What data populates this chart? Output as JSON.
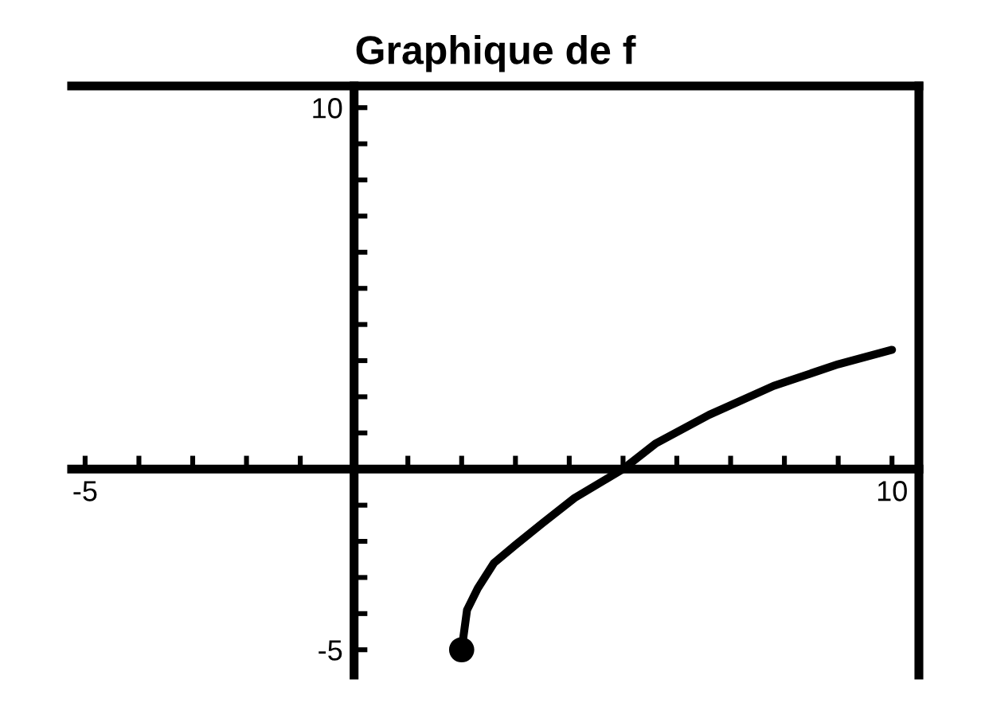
{
  "chart_data": {
    "type": "line",
    "title": "Graphique de f",
    "series": [
      {
        "color": "#000000",
        "x": [
          2,
          2.1,
          2.3,
          2.6,
          3,
          3.5,
          4.1,
          5,
          5.6,
          6.6,
          7.8,
          9,
          10
        ],
        "values": [
          -5,
          -3.9,
          -3.3,
          -2.6,
          -2.1,
          -1.5,
          -0.8,
          0,
          0.7,
          1.5,
          2.3,
          2.9,
          3.3
        ]
      },
      {
        "type": "scatter",
        "color": "#000000",
        "marker": "circle",
        "x": [
          2
        ],
        "values": [
          -5
        ]
      }
    ],
    "xlim": [
      -5.25,
      10.5
    ],
    "ylim": [
      -5.7,
      10.6
    ],
    "xticks": [
      {
        "value": -5,
        "label": "-5"
      },
      {
        "value": -4,
        "label": null
      },
      {
        "value": -3,
        "label": null
      },
      {
        "value": -2,
        "label": null
      },
      {
        "value": -1,
        "label": null
      },
      {
        "value": 1,
        "label": null
      },
      {
        "value": 2,
        "label": null
      },
      {
        "value": 3,
        "label": null
      },
      {
        "value": 4,
        "label": null
      },
      {
        "value": 5,
        "label": null
      },
      {
        "value": 6,
        "label": null
      },
      {
        "value": 7,
        "label": null
      },
      {
        "value": 8,
        "label": null
      },
      {
        "value": 9,
        "label": null
      },
      {
        "value": 10,
        "label": "10"
      }
    ],
    "yticks": [
      {
        "value": -5,
        "label": "-5"
      },
      {
        "value": -4,
        "label": null
      },
      {
        "value": -3,
        "label": null
      },
      {
        "value": -2,
        "label": null
      },
      {
        "value": -1,
        "label": null
      },
      {
        "value": 1,
        "label": null
      },
      {
        "value": 2,
        "label": null
      },
      {
        "value": 3,
        "label": null
      },
      {
        "value": 4,
        "label": null
      },
      {
        "value": 5,
        "label": null
      },
      {
        "value": 6,
        "label": null
      },
      {
        "value": 7,
        "label": null
      },
      {
        "value": 8,
        "label": null
      },
      {
        "value": 9,
        "label": null
      },
      {
        "value": 10,
        "label": "10"
      }
    ]
  }
}
